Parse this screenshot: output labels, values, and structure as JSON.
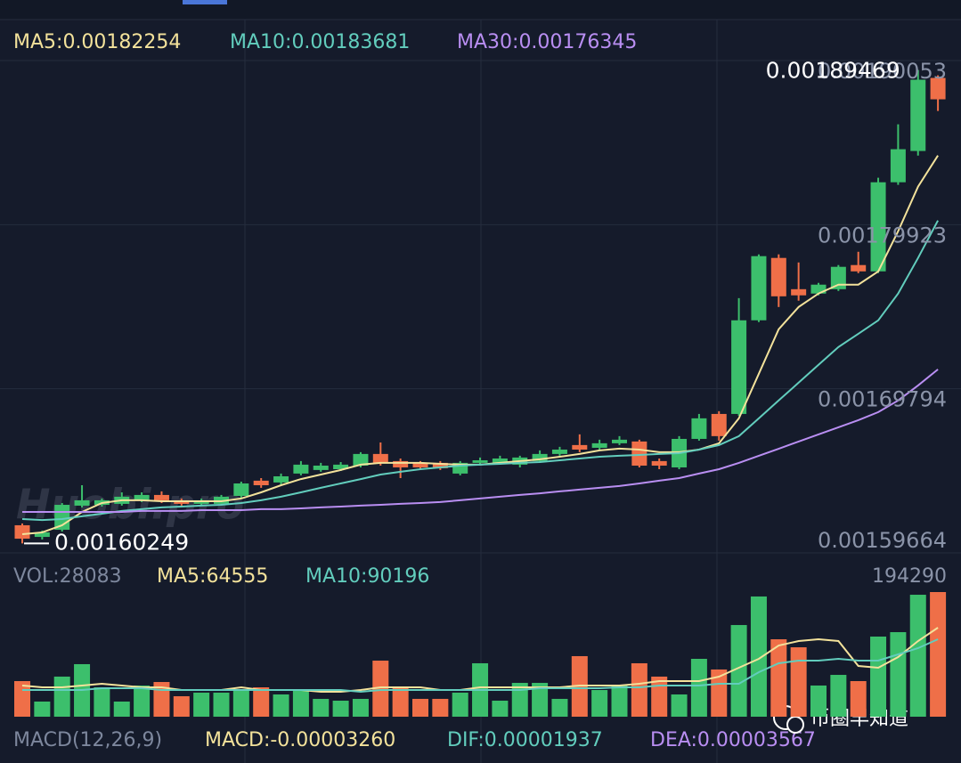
{
  "chart_data": [
    {
      "type": "candlestick",
      "up_color": "#3cbf6c",
      "down_color": "#ef6f48",
      "ylim": [
        0.00159664,
        0.00190053
      ],
      "yticks": [
        0.00190053,
        0.00179923,
        0.00169794,
        0.00159664
      ],
      "grid": true,
      "open": [
        0.0016137,
        0.0016065,
        0.0016109,
        0.0016258,
        0.0016263,
        0.0016269,
        0.0016291,
        0.0016324,
        0.0016291,
        0.0016269,
        0.0016269,
        0.0016318,
        0.0016412,
        0.0016401,
        0.0016456,
        0.0016478,
        0.0016483,
        0.0016505,
        0.0016577,
        0.0016533,
        0.0016522,
        0.0016522,
        0.0016456,
        0.0016522,
        0.0016522,
        0.0016511,
        0.0016533,
        0.0016577,
        0.0016632,
        0.0016615,
        0.0016643,
        0.0016654,
        0.0016533,
        0.0016494,
        0.001667,
        0.0016824,
        0.0016824,
        0.0017402,
        0.0017787,
        0.0017594,
        0.0017567,
        0.0017594,
        0.0017743,
        0.0017704,
        0.0018254,
        0.0018447,
        0.0018898
      ],
      "high": [
        0.0016148,
        0.0016104,
        0.0016274,
        0.0016384,
        0.0016302,
        0.001634,
        0.001634,
        0.0016346,
        0.0016302,
        0.0016302,
        0.0016324,
        0.0016406,
        0.0016428,
        0.0016456,
        0.0016533,
        0.0016522,
        0.0016527,
        0.0016588,
        0.0016648,
        0.0016549,
        0.0016533,
        0.0016533,
        0.0016533,
        0.0016555,
        0.0016566,
        0.0016566,
        0.0016599,
        0.0016621,
        0.0016698,
        0.0016665,
        0.0016687,
        0.0016665,
        0.0016549,
        0.0016687,
        0.0016824,
        0.0016841,
        0.0017539,
        0.0017809,
        0.0017809,
        0.0017759,
        0.0017633,
        0.0017743,
        0.0017825,
        0.0018282,
        0.0018612,
        0.00189469,
        0.0018914
      ],
      "low": [
        0.00160249,
        0.0016049,
        0.0016098,
        0.0016247,
        0.0016252,
        0.0016258,
        0.001628,
        0.0016274,
        0.0016258,
        0.0016258,
        0.0016263,
        0.0016307,
        0.0016368,
        0.0016389,
        0.0016445,
        0.0016467,
        0.0016472,
        0.0016494,
        0.0016505,
        0.0016428,
        0.0016483,
        0.0016478,
        0.0016445,
        0.0016511,
        0.0016511,
        0.0016494,
        0.0016522,
        0.0016566,
        0.0016588,
        0.0016604,
        0.0016632,
        0.0016494,
        0.0016483,
        0.0016483,
        0.0016659,
        0.0016659,
        0.0016813,
        0.0017391,
        0.0017484,
        0.0017523,
        0.0017556,
        0.0017583,
        0.0017693,
        0.0017693,
        0.0018238,
        0.0018419,
        0.0018694
      ],
      "close": [
        0.0016054,
        0.0016093,
        0.0016263,
        0.0016291,
        0.0016291,
        0.0016313,
        0.0016324,
        0.0016291,
        0.0016269,
        0.0016291,
        0.0016313,
        0.0016395,
        0.0016384,
        0.0016439,
        0.0016511,
        0.0016505,
        0.0016511,
        0.0016577,
        0.0016522,
        0.0016494,
        0.0016494,
        0.0016489,
        0.0016522,
        0.0016538,
        0.0016549,
        0.0016555,
        0.0016577,
        0.0016604,
        0.0016604,
        0.0016643,
        0.0016665,
        0.0016505,
        0.0016505,
        0.001667,
        0.0016797,
        0.0016687,
        0.0017402,
        0.0017798,
        0.001755,
        0.0017556,
        0.0017622,
        0.0017732,
        0.0017704,
        0.0018254,
        0.0018458,
        0.0018887,
        0.0018766
      ],
      "lines": [
        {
          "name": "MA5:0.00182254",
          "color": "#f3e29b",
          "values": [
            0.0016082,
            0.0016093,
            0.0016137,
            0.0016219,
            0.0016274,
            0.0016291,
            0.0016291,
            0.0016285,
            0.0016285,
            0.0016285,
            0.0016285,
            0.0016302,
            0.001634,
            0.0016384,
            0.0016422,
            0.001645,
            0.0016478,
            0.0016511,
            0.0016522,
            0.0016522,
            0.0016522,
            0.0016516,
            0.0016511,
            0.0016511,
            0.0016522,
            0.0016533,
            0.0016544,
            0.001656,
            0.0016577,
            0.0016599,
            0.001661,
            0.0016604,
            0.0016588,
            0.0016588,
            0.0016604,
            0.0016643,
            0.0016797,
            0.0017072,
            0.0017347,
            0.0017484,
            0.0017567,
            0.0017622,
            0.0017622,
            0.0017704,
            0.0017952,
            0.0018227,
            0.0018419
          ]
        },
        {
          "name": "MA10:0.00183681",
          "color": "#62cdbd",
          "values": [
            0.0016175,
            0.0016169,
            0.0016175,
            0.0016192,
            0.0016208,
            0.0016225,
            0.0016236,
            0.0016247,
            0.0016252,
            0.0016258,
            0.0016263,
            0.0016274,
            0.0016291,
            0.0016313,
            0.001634,
            0.0016368,
            0.0016395,
            0.0016422,
            0.001645,
            0.0016467,
            0.0016483,
            0.0016494,
            0.0016505,
            0.0016511,
            0.0016516,
            0.0016522,
            0.0016527,
            0.0016538,
            0.0016549,
            0.001656,
            0.0016566,
            0.0016571,
            0.0016577,
            0.0016582,
            0.0016604,
            0.0016632,
            0.0016687,
            0.0016797,
            0.0016907,
            0.0017017,
            0.0017127,
            0.0017237,
            0.0017319,
            0.0017402,
            0.0017567,
            0.0017787,
            0.0018018
          ]
        },
        {
          "name": "MA30:0.00176345",
          "color": "#b98ef2",
          "values": [
            0.0016219,
            0.0016219,
            0.0016219,
            0.0016219,
            0.0016219,
            0.0016219,
            0.0016225,
            0.0016225,
            0.0016225,
            0.001623,
            0.001623,
            0.001623,
            0.0016236,
            0.0016236,
            0.0016241,
            0.0016247,
            0.0016252,
            0.0016258,
            0.0016263,
            0.0016269,
            0.0016274,
            0.001628,
            0.0016291,
            0.0016302,
            0.0016313,
            0.0016324,
            0.0016334,
            0.0016346,
            0.0016357,
            0.0016368,
            0.0016379,
            0.0016395,
            0.0016412,
            0.0016428,
            0.0016456,
            0.0016483,
            0.0016522,
            0.0016566,
            0.0016609,
            0.0016654,
            0.0016698,
            0.0016742,
            0.0016786,
            0.0016835,
            0.0016907,
            0.0017,
            0.0017099
          ]
        }
      ]
    },
    {
      "type": "bar",
      "name": "VOL:28083",
      "ylim": [
        0,
        194290
      ],
      "yticks": [
        194290
      ],
      "values": [
        55500,
        23600,
        62500,
        81900,
        45800,
        23600,
        48600,
        54100,
        31900,
        37500,
        37500,
        41600,
        45800,
        34700,
        41600,
        27800,
        25000,
        27800,
        87400,
        45800,
        27800,
        27800,
        37500,
        83300,
        25000,
        52700,
        52700,
        27800,
        94400,
        41600,
        48600,
        83300,
        62500,
        34700,
        90200,
        73600,
        142900,
        187400,
        120700,
        108200,
        48600,
        65200,
        55500,
        124900,
        131800,
        190100,
        194290
      ],
      "lines": [
        {
          "name": "MA5:64555",
          "color": "#f3e29b",
          "values": [
            48600,
            45800,
            45800,
            48600,
            51300,
            48600,
            45800,
            45800,
            41600,
            41600,
            41600,
            45800,
            41600,
            41600,
            41600,
            38900,
            38900,
            41600,
            45800,
            45800,
            45800,
            41600,
            41600,
            45800,
            45800,
            45800,
            45800,
            45800,
            48600,
            48600,
            48600,
            51300,
            55500,
            55500,
            55500,
            62500,
            76300,
            90200,
            111000,
            118000,
            120700,
            118000,
            79100,
            76300,
            93000,
            118000,
            138800
          ]
        },
        {
          "name": "MA10:90196",
          "color": "#62cdbd",
          "values": [
            41600,
            41600,
            41600,
            41600,
            44400,
            44400,
            44400,
            41600,
            41600,
            41600,
            41600,
            41600,
            41600,
            41600,
            41600,
            41600,
            41600,
            38900,
            41600,
            41600,
            41600,
            41600,
            41600,
            41600,
            41600,
            41600,
            44400,
            44400,
            44400,
            44400,
            45800,
            45800,
            48600,
            48600,
            48600,
            51300,
            51300,
            69400,
            83300,
            87400,
            87400,
            90200,
            87400,
            87400,
            97100,
            106900,
            120700
          ]
        }
      ]
    }
  ],
  "macd_header": [
    {
      "text": "MACD(12,26,9)",
      "color": "#7d879d"
    },
    {
      "text": "MACD:-0.00003260",
      "color": "#f3e29b"
    },
    {
      "text": "DIF:0.00001937",
      "color": "#62cdbd"
    },
    {
      "text": "DEA:0.00003567",
      "color": "#b98ef2"
    }
  ],
  "watermark": "Huobi.pro",
  "badge": "币圈早知道"
}
